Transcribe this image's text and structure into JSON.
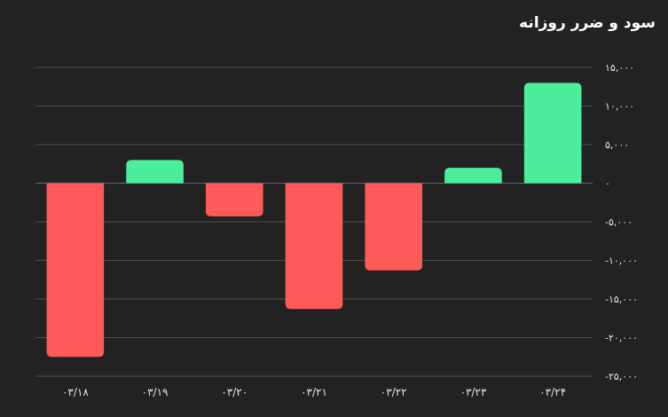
{
  "title": "سود و ضرر روزانه",
  "colors": {
    "background": "#222222",
    "positive": "#4aee9b",
    "negative": "#ff5a5a",
    "grid": "#5c5c5c",
    "text": "#e6e6e6"
  },
  "chart_data": {
    "type": "bar",
    "title": "سود و ضرر روزانه",
    "xlabel": "",
    "ylabel": "",
    "grid": true,
    "legend": "none",
    "ylim": [
      -25000,
      15000
    ],
    "y_ticks": [
      15000,
      10000,
      5000,
      0,
      -5000,
      -10000,
      -15000,
      -20000,
      -25000
    ],
    "y_tick_labels": [
      "۱۵,۰۰۰",
      "۱۰,۰۰۰",
      "۵,۰۰۰",
      "۰",
      "-۵,۰۰۰",
      "-۱۰,۰۰۰",
      "-۱۵,۰۰۰",
      "-۲۰,۰۰۰",
      "-۲۵,۰۰۰"
    ],
    "categories": [
      "۰۳/۱۸",
      "۰۳/۱۹",
      "۰۳/۲۰",
      "۰۳/۲۱",
      "۰۳/۲۲",
      "۰۳/۲۳",
      "۰۳/۲۴"
    ],
    "values": [
      -22500,
      3000,
      -4300,
      -16300,
      -11300,
      2000,
      13000
    ]
  }
}
